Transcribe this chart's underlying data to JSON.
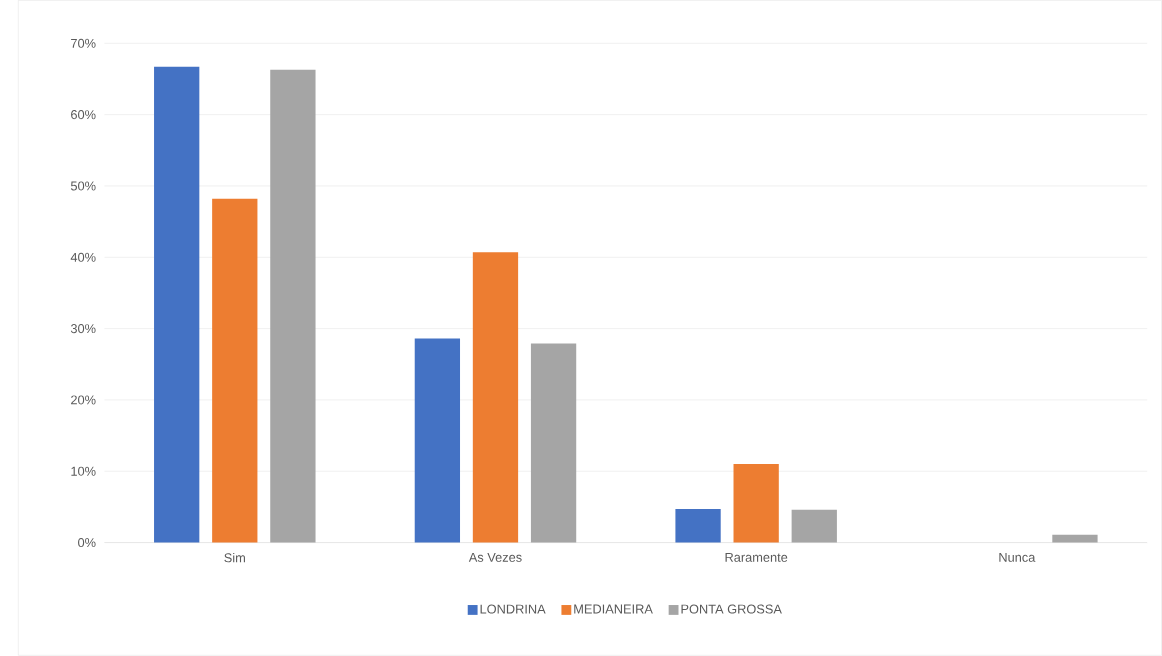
{
  "chart_data": {
    "type": "bar",
    "categories": [
      "Sim",
      "As Vezes",
      "Raramente",
      "Nunca"
    ],
    "series": [
      {
        "name": "LONDRINA",
        "color": "#4472c4",
        "values": [
          66.7,
          28.6,
          4.7,
          0
        ]
      },
      {
        "name": "MEDIANEIRA",
        "color": "#ed7d31",
        "values": [
          48.2,
          40.7,
          11.0,
          0
        ]
      },
      {
        "name": "PONTA GROSSA",
        "color": "#a5a5a5",
        "values": [
          66.3,
          27.9,
          4.6,
          1.1
        ]
      }
    ],
    "ylim": [
      0,
      70
    ],
    "yticks": [
      {
        "value": 0,
        "label": "0%"
      },
      {
        "value": 10,
        "label": "10%"
      },
      {
        "value": 20,
        "label": "20%"
      },
      {
        "value": 30,
        "label": "30%"
      },
      {
        "value": 40,
        "label": "40%"
      },
      {
        "value": 50,
        "label": "50%"
      },
      {
        "value": 60,
        "label": "60%"
      },
      {
        "value": 70,
        "label": "70%"
      }
    ],
    "grid": "y",
    "legend": "bottom"
  }
}
